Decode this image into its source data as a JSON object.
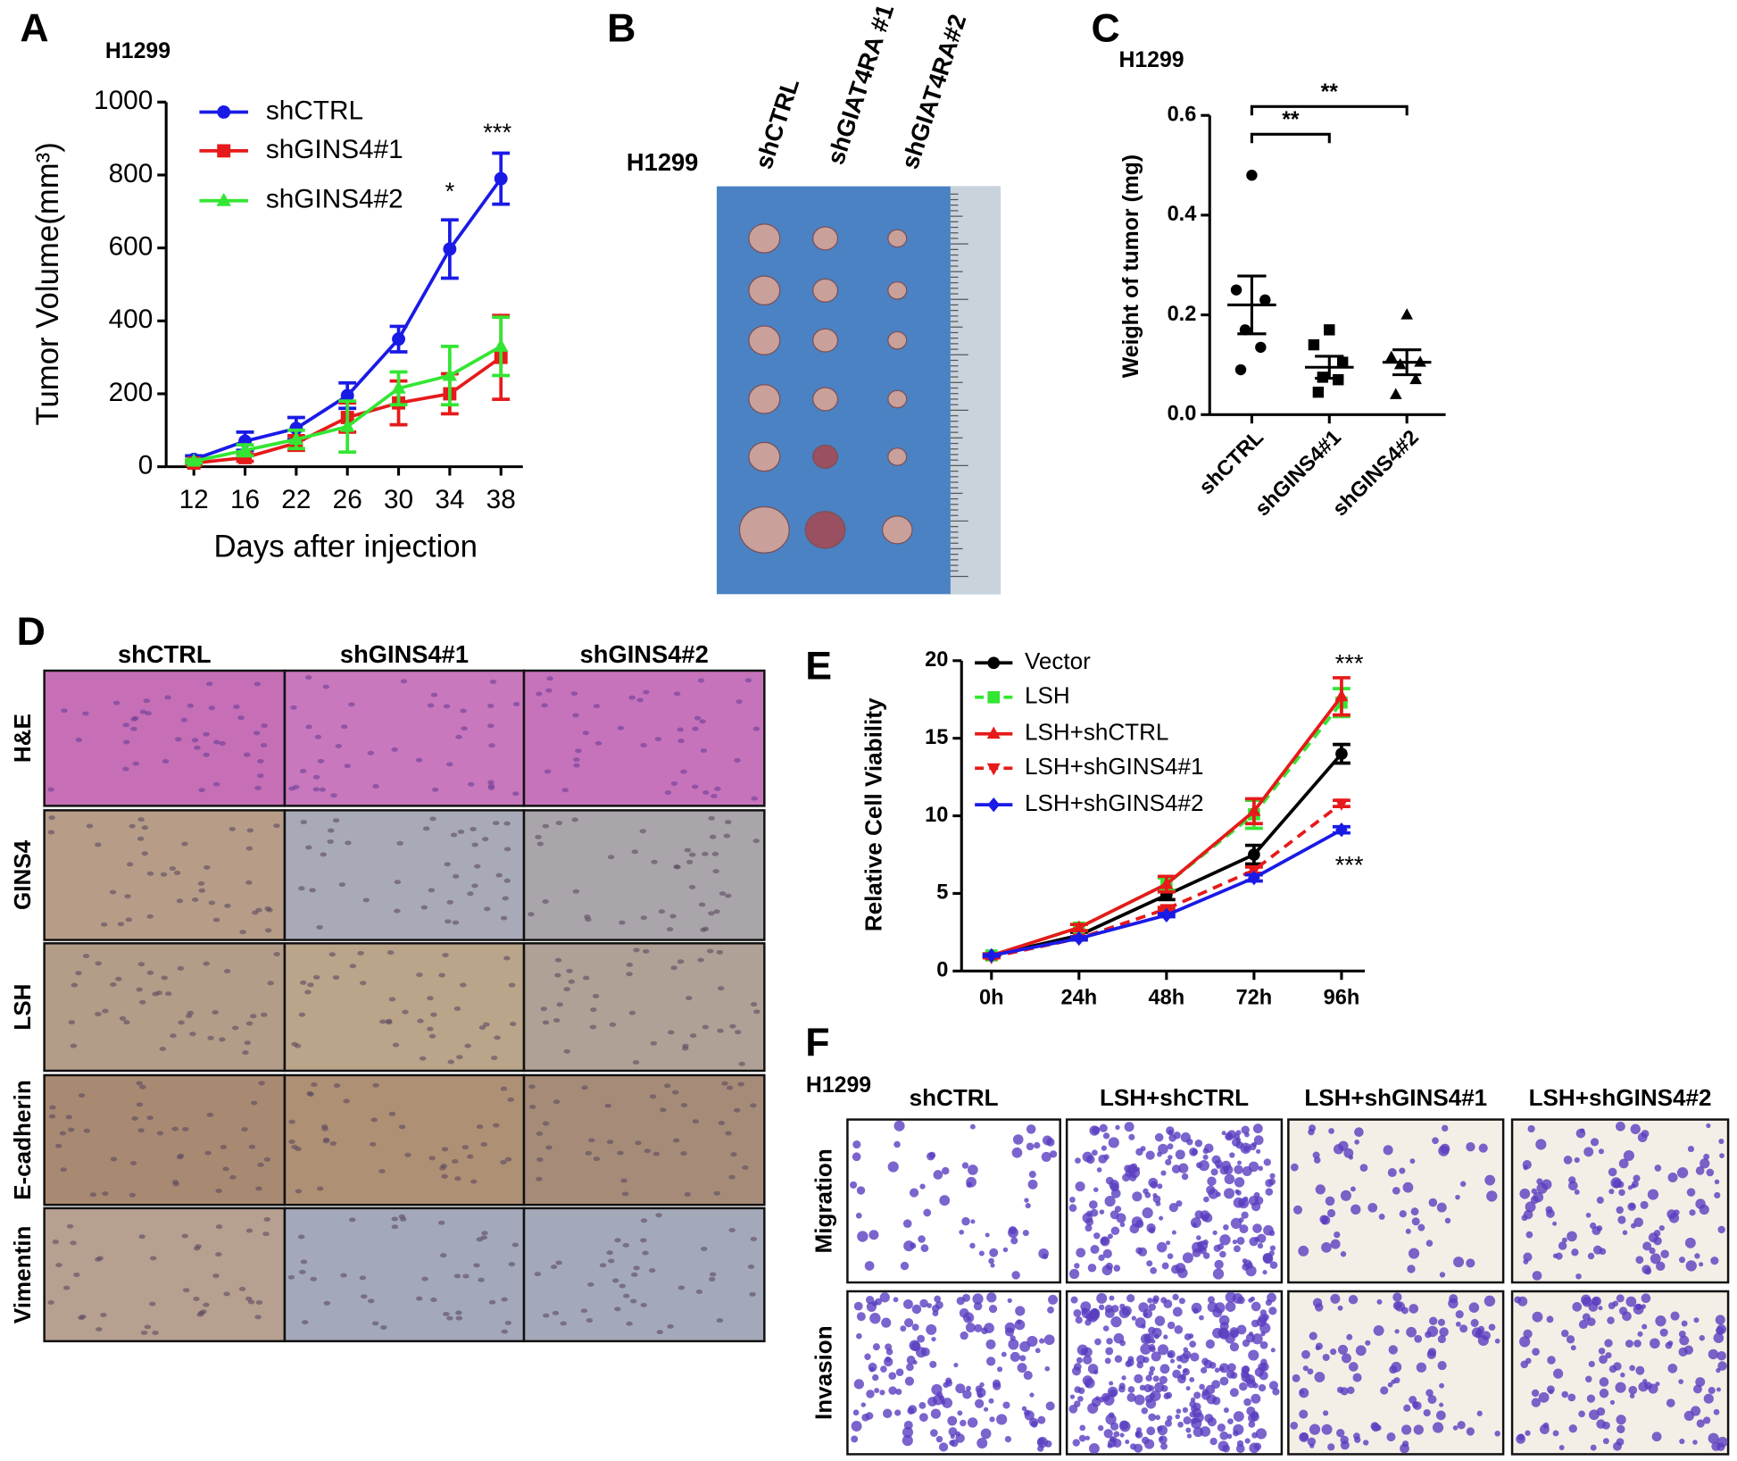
{
  "panels": {
    "labels": [
      "A",
      "B",
      "C",
      "D",
      "E",
      "F"
    ]
  },
  "chart_data": [
    {
      "type": "line",
      "title": "H1299",
      "x_label": "Days after injection",
      "y_label": "Tumor Volume(mm³)",
      "categories": [
        "12",
        "16",
        "22",
        "26",
        "30",
        "34",
        "38"
      ],
      "ylim": [
        0,
        1000
      ],
      "yticks": [
        0,
        200,
        400,
        600,
        800,
        1000
      ],
      "annotations": [
        "*",
        "***"
      ],
      "series": [
        {
          "name": "shCTRL",
          "color": "#1a1ae6",
          "marker": "circle",
          "dashed": false,
          "values": [
            20,
            70,
            105,
            195,
            350,
            597,
            790
          ],
          "errors": [
            10,
            25,
            30,
            35,
            35,
            80,
            70
          ]
        },
        {
          "name": "shGINS4#1",
          "color": "#e61a1a",
          "marker": "square",
          "dashed": false,
          "values": [
            10,
            25,
            65,
            135,
            175,
            200,
            300
          ],
          "errors": [
            5,
            10,
            20,
            40,
            60,
            55,
            115
          ]
        },
        {
          "name": "shGINS4#2",
          "color": "#33e633",
          "marker": "triangle",
          "dashed": false,
          "values": [
            15,
            45,
            75,
            110,
            215,
            250,
            330
          ],
          "errors": [
            5,
            15,
            25,
            70,
            45,
            80,
            80
          ]
        }
      ]
    },
    {
      "type": "scatter",
      "title": "H1299",
      "y_label": "Weight of tumor (mg)",
      "categories": [
        "shCTRL",
        "shGINS4#1",
        "shGINS4#2"
      ],
      "ylim": [
        0,
        0.6
      ],
      "yticks": [
        {
          "value": 0,
          "label": "0.0"
        },
        0.2,
        0.4,
        0.6
      ],
      "annotations": [
        "**",
        "**"
      ],
      "color": "#000000",
      "groups": [
        {
          "marker": "circle",
          "points": [
            0.48,
            0.25,
            0.23,
            0.17,
            0.135,
            0.09
          ],
          "mean": 0.22,
          "sem": 0.058
        },
        {
          "marker": "square",
          "points": [
            0.17,
            0.14,
            0.105,
            0.075,
            0.07,
            0.045
          ],
          "mean": 0.095,
          "sem": 0.022
        },
        {
          "marker": "triangle",
          "points": [
            0.2,
            0.115,
            0.105,
            0.1,
            0.07,
            0.04
          ],
          "mean": 0.105,
          "sem": 0.025
        }
      ]
    },
    {
      "type": "line",
      "y_label": "Relative Cell Viability",
      "categories": [
        "0h",
        "24h",
        "48h",
        "72h",
        "96h"
      ],
      "ylim": [
        0,
        20
      ],
      "yticks": [
        0,
        5,
        10,
        15,
        20
      ],
      "annotations": [
        "***",
        "***"
      ],
      "series": [
        {
          "name": "Vector",
          "color": "#000000",
          "marker": "circle",
          "dashed": false,
          "values": [
            1,
            2.3,
            4.9,
            7.5,
            14.0
          ],
          "errors": [
            0.1,
            0.2,
            0.3,
            0.6,
            0.6
          ]
        },
        {
          "name": "LSH",
          "color": "#33e633",
          "marker": "square",
          "dashed": true,
          "values": [
            1,
            2.8,
            5.6,
            10.1,
            17.3
          ],
          "errors": [
            0.1,
            0.2,
            0.4,
            0.9,
            0.9
          ]
        },
        {
          "name": "LSH+shCTRL",
          "color": "#e61a1a",
          "marker": "triangle",
          "dashed": false,
          "values": [
            1,
            2.8,
            5.6,
            10.3,
            17.7
          ],
          "errors": [
            0.1,
            0.2,
            0.5,
            0.8,
            1.2
          ]
        },
        {
          "name": "LSH+shGINS4#1",
          "color": "#e61a1a",
          "marker": "triangle-down",
          "dashed": true,
          "values": [
            0.9,
            2.1,
            4.0,
            6.5,
            10.8
          ],
          "errors": [
            0.05,
            0.1,
            0.1,
            0.2,
            0.2
          ]
        },
        {
          "name": "LSH+shGINS4#2",
          "color": "#1a1ae6",
          "marker": "diamond",
          "dashed": false,
          "values": [
            1,
            2.1,
            3.6,
            6.0,
            9.1
          ],
          "errors": [
            0.05,
            0.1,
            0.1,
            0.2,
            0.2
          ]
        }
      ]
    }
  ],
  "photo_b": {
    "title": "H1299",
    "columns": [
      "shCTRL",
      "shGIAT4RA #1",
      "shGIAT4RA#2"
    ]
  },
  "ihc_d": {
    "columns": [
      "shCTRL",
      "shGINS4#1",
      "shGINS4#2"
    ],
    "rows": [
      "H&E",
      "GINS4",
      "LSH",
      "E-cadherin",
      "Vimentin"
    ]
  },
  "transwell_f": {
    "title": "H1299",
    "columns": [
      "shCTRL",
      "LSH+shCTRL",
      "LSH+shGINS4#1",
      "LSH+shGINS4#2"
    ],
    "rows": [
      "Migration",
      "Invasion"
    ]
  }
}
